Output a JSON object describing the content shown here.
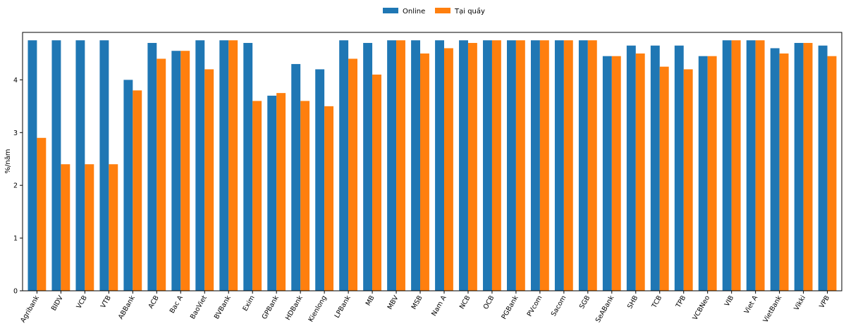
{
  "chart_data": {
    "type": "bar",
    "ylabel": "%/năm",
    "ylim": [
      0,
      4.9
    ],
    "yticks": [
      0,
      1,
      2,
      3,
      4
    ],
    "grid": false,
    "legend_position": "top-center",
    "categories": [
      "Agribank",
      "BIDV",
      "VCB",
      "VTB",
      "ABBank",
      "ACB",
      "Bac A",
      "BaoViet",
      "BVBank",
      "Exim",
      "GPBank",
      "HDBank",
      "Kienlong",
      "LPBank",
      "MB",
      "MBV",
      "MSB",
      "Nam A",
      "NCB",
      "OCB",
      "PGBank",
      "PVcom",
      "Sacom",
      "SGB",
      "SeABank",
      "SHB",
      "TCB",
      "TPB",
      "VCBNeo",
      "VIB",
      "Viet A",
      "VietBank",
      "Vikki",
      "VPB"
    ],
    "series": [
      {
        "name": "Online",
        "color": "#1f77b4",
        "values": [
          4.75,
          4.75,
          4.75,
          4.75,
          4.0,
          4.7,
          4.55,
          4.75,
          4.75,
          4.7,
          3.7,
          4.3,
          4.2,
          4.75,
          4.7,
          4.75,
          4.75,
          4.75,
          4.75,
          4.75,
          4.75,
          4.75,
          4.75,
          4.75,
          4.45,
          4.65,
          4.65,
          4.65,
          4.45,
          4.75,
          4.75,
          4.6,
          4.7,
          4.65
        ]
      },
      {
        "name": "Tại quầy",
        "color": "#ff7f0e",
        "values": [
          2.9,
          2.4,
          2.4,
          2.4,
          3.8,
          4.4,
          4.55,
          4.2,
          4.75,
          3.6,
          3.75,
          3.6,
          3.5,
          4.4,
          4.1,
          4.75,
          4.5,
          4.6,
          4.7,
          4.75,
          4.75,
          4.75,
          4.75,
          4.75,
          4.45,
          4.5,
          4.25,
          4.2,
          4.45,
          4.75,
          4.75,
          4.5,
          4.7,
          4.45
        ]
      }
    ]
  }
}
